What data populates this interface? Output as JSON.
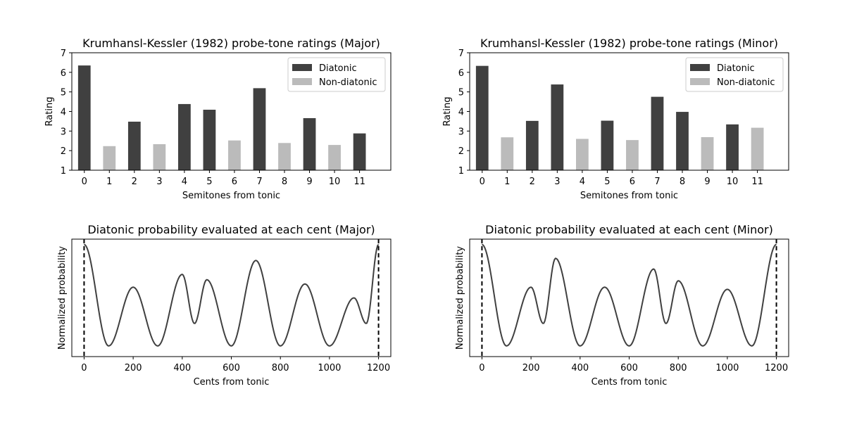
{
  "colors": {
    "diatonic": "#404040",
    "non_diatonic": "#bbbbbb",
    "curve": "#404040",
    "boundary": "#000000"
  },
  "chart_data": [
    {
      "type": "bar",
      "title": "Krumhansl-Kessler (1982) probe-tone ratings (Major)",
      "xlabel": "Semitones from tonic",
      "ylabel": "Rating",
      "categories": [
        "0",
        "1",
        "2",
        "3",
        "4",
        "5",
        "6",
        "7",
        "8",
        "9",
        "10",
        "11"
      ],
      "values": [
        6.35,
        2.23,
        3.48,
        2.33,
        4.38,
        4.09,
        2.52,
        5.19,
        2.39,
        3.66,
        2.29,
        2.88
      ],
      "diatonic": [
        true,
        false,
        true,
        false,
        true,
        true,
        false,
        true,
        false,
        true,
        false,
        true
      ],
      "ylim": [
        1,
        7
      ],
      "yticks": [
        1,
        2,
        3,
        4,
        5,
        6,
        7
      ],
      "legend": [
        "Diatonic",
        "Non-diatonic"
      ],
      "legend_position": "top-right",
      "grid": false
    },
    {
      "type": "bar",
      "title": "Krumhansl-Kessler (1982) probe-tone ratings (Minor)",
      "xlabel": "Semitones from tonic",
      "ylabel": "Rating",
      "categories": [
        "0",
        "1",
        "2",
        "3",
        "4",
        "5",
        "6",
        "7",
        "8",
        "9",
        "10",
        "11"
      ],
      "values": [
        6.33,
        2.68,
        3.52,
        5.38,
        2.6,
        3.53,
        2.54,
        4.75,
        3.98,
        2.69,
        3.34,
        3.17
      ],
      "diatonic": [
        true,
        false,
        true,
        true,
        false,
        true,
        false,
        true,
        true,
        false,
        true,
        false
      ],
      "ylim": [
        1,
        7
      ],
      "yticks": [
        1,
        2,
        3,
        4,
        5,
        6,
        7
      ],
      "legend": [
        "Diatonic",
        "Non-diatonic"
      ],
      "legend_position": "top-right",
      "grid": false
    },
    {
      "type": "line",
      "title": "Diatonic probability evaluated at each cent (Major)",
      "xlabel": "Cents from tonic",
      "ylabel": "Normalized probability",
      "xlim": [
        -50,
        1250
      ],
      "xticks": [
        0,
        200,
        400,
        600,
        800,
        1000,
        1200
      ],
      "x": [
        0,
        100,
        200,
        300,
        400,
        450,
        500,
        600,
        700,
        800,
        900,
        1000,
        1100,
        1150,
        1200
      ],
      "y": [
        1.0,
        0.05,
        0.6,
        0.05,
        0.72,
        0.26,
        0.67,
        0.05,
        0.85,
        0.05,
        0.63,
        0.05,
        0.5,
        0.26,
        1.0
      ],
      "ylim": [
        -0.05,
        1.05
      ],
      "boundaries": [
        0,
        1200
      ],
      "grid": false
    },
    {
      "type": "line",
      "title": "Diatonic probability evaluated at each cent (Minor)",
      "xlabel": "Cents from tonic",
      "ylabel": "Normalized probability",
      "xlim": [
        -50,
        1250
      ],
      "xticks": [
        0,
        200,
        400,
        600,
        800,
        1000,
        1200
      ],
      "x": [
        0,
        100,
        200,
        250,
        300,
        400,
        500,
        600,
        700,
        750,
        800,
        900,
        1000,
        1100,
        1200
      ],
      "y": [
        1.0,
        0.05,
        0.6,
        0.26,
        0.87,
        0.05,
        0.6,
        0.05,
        0.77,
        0.26,
        0.66,
        0.05,
        0.58,
        0.05,
        1.0
      ],
      "ylim": [
        -0.05,
        1.05
      ],
      "boundaries": [
        0,
        1200
      ],
      "grid": false
    }
  ]
}
